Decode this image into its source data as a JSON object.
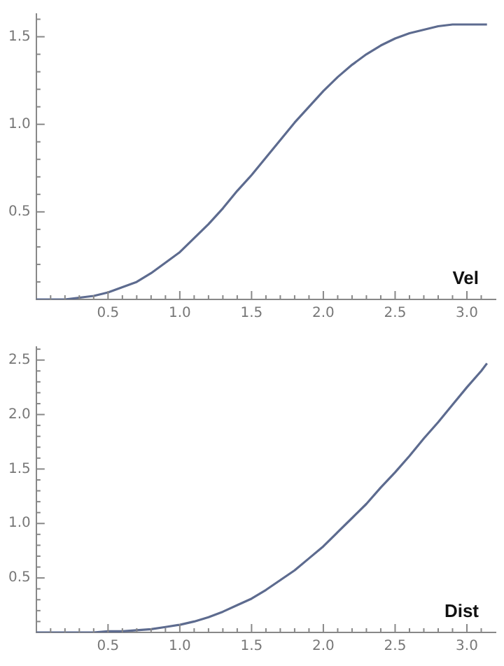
{
  "chart_data": [
    {
      "type": "line",
      "xlim": [
        0,
        3.2
      ],
      "ylim": [
        0,
        1.63
      ],
      "xticks": [
        {
          "value": 0.1,
          "label": null
        },
        {
          "value": 0.2,
          "label": null
        },
        {
          "value": 0.3,
          "label": null
        },
        {
          "value": 0.4,
          "label": null
        },
        {
          "value": 0.5,
          "label": "0.5"
        },
        {
          "value": 0.6,
          "label": null
        },
        {
          "value": 0.7,
          "label": null
        },
        {
          "value": 0.8,
          "label": null
        },
        {
          "value": 0.9,
          "label": null
        },
        {
          "value": 1,
          "label": "1.0"
        },
        {
          "value": 1.1,
          "label": null
        },
        {
          "value": 1.2,
          "label": null
        },
        {
          "value": 1.3,
          "label": null
        },
        {
          "value": 1.4,
          "label": null
        },
        {
          "value": 1.5,
          "label": "1.5"
        },
        {
          "value": 1.6,
          "label": null
        },
        {
          "value": 1.7,
          "label": null
        },
        {
          "value": 1.8,
          "label": null
        },
        {
          "value": 1.9,
          "label": null
        },
        {
          "value": 2,
          "label": "2.0"
        },
        {
          "value": 2.1,
          "label": null
        },
        {
          "value": 2.2,
          "label": null
        },
        {
          "value": 2.3,
          "label": null
        },
        {
          "value": 2.4,
          "label": null
        },
        {
          "value": 2.5,
          "label": "2.5"
        },
        {
          "value": 2.6,
          "label": null
        },
        {
          "value": 2.7,
          "label": null
        },
        {
          "value": 2.8,
          "label": null
        },
        {
          "value": 2.9,
          "label": null
        },
        {
          "value": 3,
          "label": "3.0"
        },
        {
          "value": 3.1,
          "label": null
        }
      ],
      "yticks": [
        {
          "value": 0.1,
          "label": null
        },
        {
          "value": 0.2,
          "label": null
        },
        {
          "value": 0.3,
          "label": null
        },
        {
          "value": 0.4,
          "label": null
        },
        {
          "value": 0.5,
          "label": "0.5"
        },
        {
          "value": 0.6,
          "label": null
        },
        {
          "value": 0.7,
          "label": null
        },
        {
          "value": 0.8,
          "label": null
        },
        {
          "value": 0.9,
          "label": null
        },
        {
          "value": 1,
          "label": "1.0"
        },
        {
          "value": 1.1,
          "label": null
        },
        {
          "value": 1.2,
          "label": null
        },
        {
          "value": 1.3,
          "label": null
        },
        {
          "value": 1.4,
          "label": null
        },
        {
          "value": 1.5,
          "label": "1.5"
        },
        {
          "value": 1.6,
          "label": null
        }
      ],
      "x": [
        0,
        0.1,
        0.2,
        0.3,
        0.4,
        0.5,
        0.6,
        0.7,
        0.8,
        0.9,
        1,
        1.1,
        1.2,
        1.3,
        1.4,
        1.5,
        1.6,
        1.7,
        1.8,
        1.9,
        2,
        2.1,
        2.2,
        2.3,
        2.4,
        2.5,
        2.6,
        2.7,
        2.8,
        2.9,
        3,
        3.1,
        3.14
      ],
      "series": [
        {
          "name": "Vel",
          "color": "#5d6b8f",
          "values": [
            0,
            0,
            0,
            0.01,
            0.02,
            0.04,
            0.07,
            0.1,
            0.15,
            0.21,
            0.27,
            0.35,
            0.43,
            0.52,
            0.62,
            0.71,
            0.81,
            0.91,
            1.01,
            1.1,
            1.19,
            1.27,
            1.34,
            1.4,
            1.45,
            1.49,
            1.52,
            1.54,
            1.56,
            1.57,
            1.57,
            1.57,
            1.57
          ]
        }
      ],
      "grid": false,
      "legend": false,
      "marker": "none",
      "line_style": "solid"
    },
    {
      "type": "line",
      "xlim": [
        0,
        3.2
      ],
      "ylim": [
        0,
        2.62
      ],
      "xticks": [
        {
          "value": 0.1,
          "label": null
        },
        {
          "value": 0.2,
          "label": null
        },
        {
          "value": 0.3,
          "label": null
        },
        {
          "value": 0.4,
          "label": null
        },
        {
          "value": 0.5,
          "label": "0.5"
        },
        {
          "value": 0.6,
          "label": null
        },
        {
          "value": 0.7,
          "label": null
        },
        {
          "value": 0.8,
          "label": null
        },
        {
          "value": 0.9,
          "label": null
        },
        {
          "value": 1,
          "label": "1.0"
        },
        {
          "value": 1.1,
          "label": null
        },
        {
          "value": 1.2,
          "label": null
        },
        {
          "value": 1.3,
          "label": null
        },
        {
          "value": 1.4,
          "label": null
        },
        {
          "value": 1.5,
          "label": "1.5"
        },
        {
          "value": 1.6,
          "label": null
        },
        {
          "value": 1.7,
          "label": null
        },
        {
          "value": 1.8,
          "label": null
        },
        {
          "value": 1.9,
          "label": null
        },
        {
          "value": 2,
          "label": "2.0"
        },
        {
          "value": 2.1,
          "label": null
        },
        {
          "value": 2.2,
          "label": null
        },
        {
          "value": 2.3,
          "label": null
        },
        {
          "value": 2.4,
          "label": null
        },
        {
          "value": 2.5,
          "label": "2.5"
        },
        {
          "value": 2.6,
          "label": null
        },
        {
          "value": 2.7,
          "label": null
        },
        {
          "value": 2.8,
          "label": null
        },
        {
          "value": 2.9,
          "label": null
        },
        {
          "value": 3,
          "label": "3.0"
        },
        {
          "value": 3.1,
          "label": null
        }
      ],
      "yticks": [
        {
          "value": 0.1,
          "label": null
        },
        {
          "value": 0.2,
          "label": null
        },
        {
          "value": 0.3,
          "label": null
        },
        {
          "value": 0.4,
          "label": null
        },
        {
          "value": 0.5,
          "label": "0.5"
        },
        {
          "value": 0.6,
          "label": null
        },
        {
          "value": 0.7,
          "label": null
        },
        {
          "value": 0.8,
          "label": null
        },
        {
          "value": 0.9,
          "label": null
        },
        {
          "value": 1,
          "label": "1.0"
        },
        {
          "value": 1.1,
          "label": null
        },
        {
          "value": 1.2,
          "label": null
        },
        {
          "value": 1.3,
          "label": null
        },
        {
          "value": 1.4,
          "label": null
        },
        {
          "value": 1.5,
          "label": "1.5"
        },
        {
          "value": 1.6,
          "label": null
        },
        {
          "value": 1.7,
          "label": null
        },
        {
          "value": 1.8,
          "label": null
        },
        {
          "value": 1.9,
          "label": null
        },
        {
          "value": 2,
          "label": "2.0"
        },
        {
          "value": 2.1,
          "label": null
        },
        {
          "value": 2.2,
          "label": null
        },
        {
          "value": 2.3,
          "label": null
        },
        {
          "value": 2.4,
          "label": null
        },
        {
          "value": 2.5,
          "label": "2.5"
        },
        {
          "value": 2.6,
          "label": null
        }
      ],
      "x": [
        0,
        0.1,
        0.2,
        0.3,
        0.4,
        0.5,
        0.6,
        0.7,
        0.8,
        0.9,
        1,
        1.1,
        1.2,
        1.3,
        1.4,
        1.5,
        1.6,
        1.7,
        1.8,
        1.9,
        2,
        2.1,
        2.2,
        2.3,
        2.4,
        2.5,
        2.6,
        2.7,
        2.8,
        2.9,
        3,
        3.1,
        3.14
      ],
      "series": [
        {
          "name": "Dist",
          "color": "#5d6b8f",
          "values": [
            0,
            0,
            0,
            0,
            0,
            0.01,
            0.01,
            0.02,
            0.03,
            0.05,
            0.07,
            0.1,
            0.14,
            0.19,
            0.25,
            0.31,
            0.39,
            0.48,
            0.57,
            0.68,
            0.79,
            0.92,
            1.05,
            1.18,
            1.33,
            1.47,
            1.62,
            1.78,
            1.93,
            2.09,
            2.25,
            2.4,
            2.47
          ]
        }
      ],
      "grid": false,
      "legend": false,
      "marker": "none",
      "line_style": "solid"
    }
  ]
}
